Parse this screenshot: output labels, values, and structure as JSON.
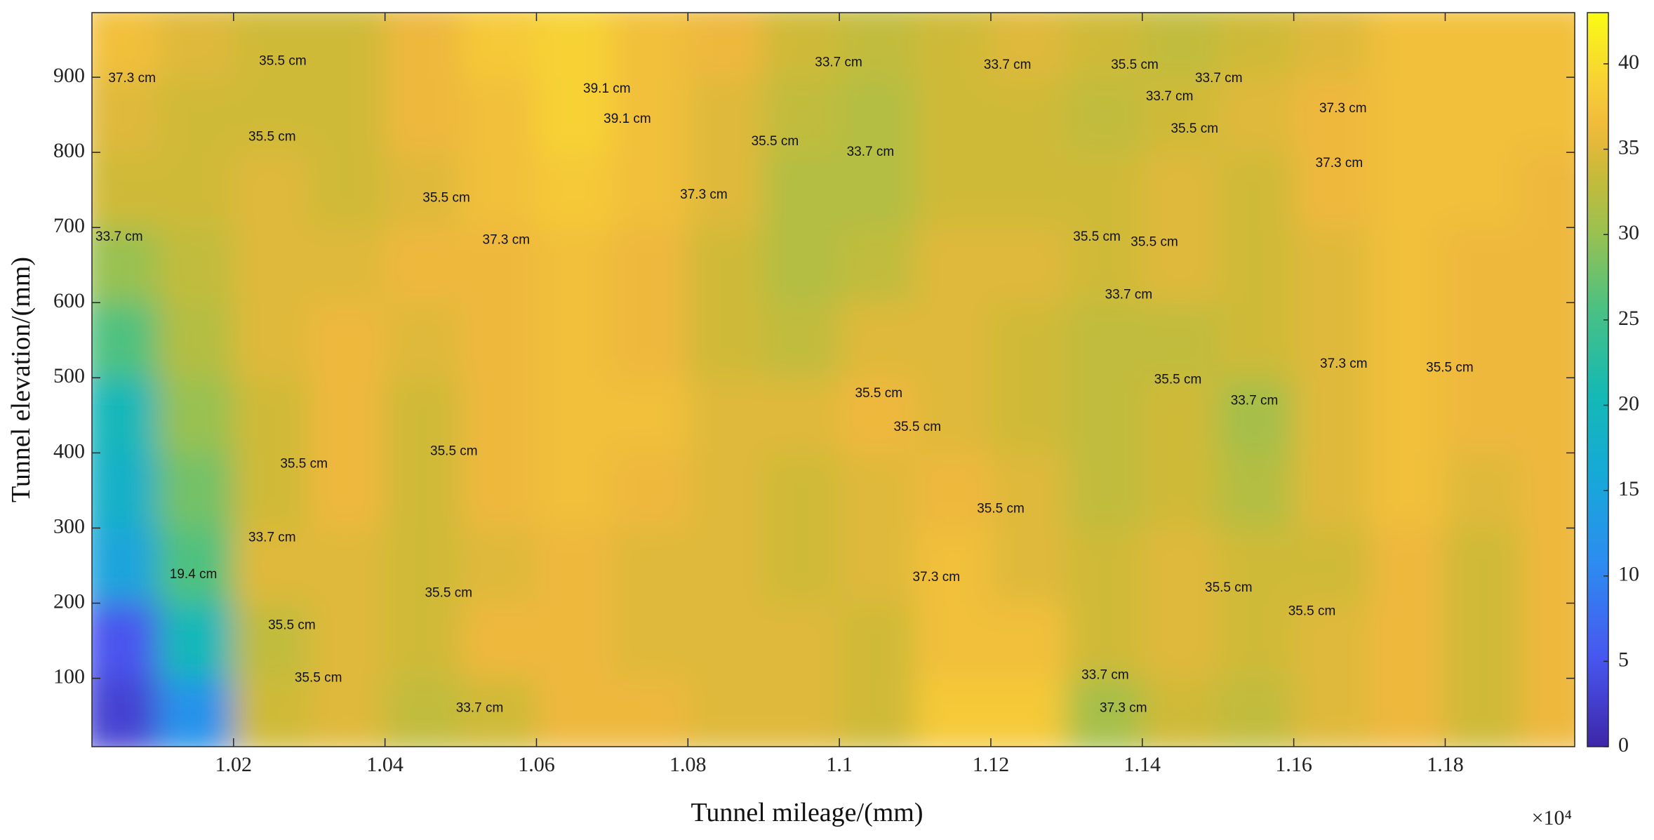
{
  "chart_data": {
    "type": "contour",
    "xlabel": "Tunnel mileage/(mm)",
    "ylabel": "Tunnel elevation/(mm)",
    "x_exponent": "×10⁴",
    "xlim": [
      10013,
      11971
    ],
    "ylim": [
      9,
      986
    ],
    "xticks": [
      {
        "value": 10200,
        "label": "1.02"
      },
      {
        "value": 10400,
        "label": "1.04"
      },
      {
        "value": 10600,
        "label": "1.06"
      },
      {
        "value": 10800,
        "label": "1.08"
      },
      {
        "value": 11000,
        "label": "1.1"
      },
      {
        "value": 11200,
        "label": "1.12"
      },
      {
        "value": 11400,
        "label": "1.14"
      },
      {
        "value": 11600,
        "label": "1.16"
      },
      {
        "value": 11800,
        "label": "1.18"
      }
    ],
    "yticks": [
      100,
      200,
      300,
      400,
      500,
      600,
      700,
      800,
      900
    ],
    "clim": [
      0,
      43
    ],
    "cticks": [
      0,
      5,
      10,
      15,
      20,
      25,
      30,
      35,
      40
    ],
    "colormap": "parula",
    "x": [
      10050,
      10150,
      10250,
      10350,
      10450,
      10550,
      10650,
      10750,
      10850,
      10950,
      11050,
      11150,
      11250,
      11350,
      11450,
      11550,
      11650,
      11750,
      11850,
      11950
    ],
    "y": [
      50,
      150,
      250,
      350,
      450,
      550,
      650,
      750,
      850,
      950
    ],
    "z": [
      [
        3,
        12,
        34,
        35,
        33,
        34,
        36,
        36,
        35,
        35,
        34,
        38,
        38,
        31,
        34,
        33,
        35,
        36,
        34,
        36
      ],
      [
        5,
        20,
        33,
        35,
        34,
        36,
        36,
        35,
        35,
        35,
        34,
        37,
        37,
        34,
        35,
        34,
        35,
        36,
        34,
        36
      ],
      [
        15,
        26,
        35,
        35,
        34,
        35,
        36,
        35,
        35,
        34,
        35,
        37,
        35,
        34,
        35,
        34,
        34,
        36,
        34,
        36
      ],
      [
        18,
        28,
        34,
        36,
        34,
        36,
        37,
        36,
        35,
        34,
        35,
        36,
        35,
        33,
        34,
        32,
        35,
        37,
        35,
        36
      ],
      [
        20,
        30,
        34,
        36,
        34,
        36,
        37,
        37,
        35,
        35,
        36,
        35,
        34,
        33,
        34,
        31,
        35,
        37,
        36,
        36
      ],
      [
        26,
        32,
        35,
        36,
        35,
        36,
        37,
        36,
        34,
        33,
        35,
        35,
        34,
        33,
        33,
        34,
        35,
        37,
        36,
        36
      ],
      [
        30,
        33,
        35,
        35,
        36,
        36,
        37,
        36,
        34,
        32,
        33,
        35,
        35,
        34,
        35,
        34,
        35,
        37,
        36,
        36
      ],
      [
        34,
        34,
        35,
        34,
        35,
        37,
        38,
        37,
        35,
        32,
        32,
        34,
        34,
        34,
        35,
        34,
        36,
        37,
        37,
        36
      ],
      [
        35,
        34,
        34,
        34,
        36,
        37,
        39,
        37,
        35,
        33,
        32,
        34,
        34,
        33,
        34,
        35,
        36,
        37,
        37,
        37
      ],
      [
        37,
        35,
        34,
        34,
        36,
        38,
        39,
        37,
        36,
        34,
        33,
        34,
        35,
        34,
        33,
        34,
        35,
        37,
        37,
        37
      ]
    ],
    "contour_labels": [
      {
        "text": "37.3 cm",
        "x": 10066,
        "y": 898
      },
      {
        "text": "35.5 cm",
        "x": 10265,
        "y": 921
      },
      {
        "text": "35.5 cm",
        "x": 10251,
        "y": 820
      },
      {
        "text": "33.7 cm",
        "x": 10049,
        "y": 687
      },
      {
        "text": "35.5 cm",
        "x": 10481,
        "y": 739
      },
      {
        "text": "37.3 cm",
        "x": 10560,
        "y": 683
      },
      {
        "text": "39.1 cm",
        "x": 10693,
        "y": 884
      },
      {
        "text": "39.1 cm",
        "x": 10720,
        "y": 844
      },
      {
        "text": "37.3 cm",
        "x": 10821,
        "y": 743
      },
      {
        "text": "35.5 cm",
        "x": 10915,
        "y": 814
      },
      {
        "text": "33.7 cm",
        "x": 10999,
        "y": 919
      },
      {
        "text": "33.7 cm",
        "x": 11041,
        "y": 800
      },
      {
        "text": "33.7 cm",
        "x": 11222,
        "y": 916
      },
      {
        "text": "35.5 cm",
        "x": 11390,
        "y": 916
      },
      {
        "text": "33.7 cm",
        "x": 11436,
        "y": 874
      },
      {
        "text": "33.7 cm",
        "x": 11501,
        "y": 898
      },
      {
        "text": "35.5 cm",
        "x": 11469,
        "y": 831
      },
      {
        "text": "37.3 cm",
        "x": 11665,
        "y": 858
      },
      {
        "text": "37.3 cm",
        "x": 11660,
        "y": 785
      },
      {
        "text": "35.5 cm",
        "x": 11340,
        "y": 687
      },
      {
        "text": "35.5 cm",
        "x": 11416,
        "y": 680
      },
      {
        "text": "33.7 cm",
        "x": 11382,
        "y": 610
      },
      {
        "text": "35.5 cm",
        "x": 11052,
        "y": 479
      },
      {
        "text": "35.5 cm",
        "x": 11103,
        "y": 434
      },
      {
        "text": "35.5 cm",
        "x": 10491,
        "y": 402
      },
      {
        "text": "35.5 cm",
        "x": 10293,
        "y": 385
      },
      {
        "text": "33.7 cm",
        "x": 10251,
        "y": 287
      },
      {
        "text": "35.5 cm",
        "x": 11213,
        "y": 325
      },
      {
        "text": "35.5 cm",
        "x": 11447,
        "y": 497
      },
      {
        "text": "33.7 cm",
        "x": 11548,
        "y": 469
      },
      {
        "text": "37.3 cm",
        "x": 11666,
        "y": 518
      },
      {
        "text": "35.5 cm",
        "x": 11806,
        "y": 513
      },
      {
        "text": "37.3 cm",
        "x": 11128,
        "y": 234
      },
      {
        "text": "35.5 cm",
        "x": 11514,
        "y": 220
      },
      {
        "text": "35.5 cm",
        "x": 11624,
        "y": 189
      },
      {
        "text": "35.5 cm",
        "x": 10484,
        "y": 213
      },
      {
        "text": "35.5 cm",
        "x": 10277,
        "y": 170
      },
      {
        "text": "35.5 cm",
        "x": 10312,
        "y": 100
      },
      {
        "text": "33.7 cm",
        "x": 10525,
        "y": 60
      },
      {
        "text": "33.7 cm",
        "x": 11351,
        "y": 104
      },
      {
        "text": "37.3 cm",
        "x": 11375,
        "y": 60
      },
      {
        "text": "19.4 cm",
        "x": 10147,
        "y": 238
      }
    ]
  }
}
